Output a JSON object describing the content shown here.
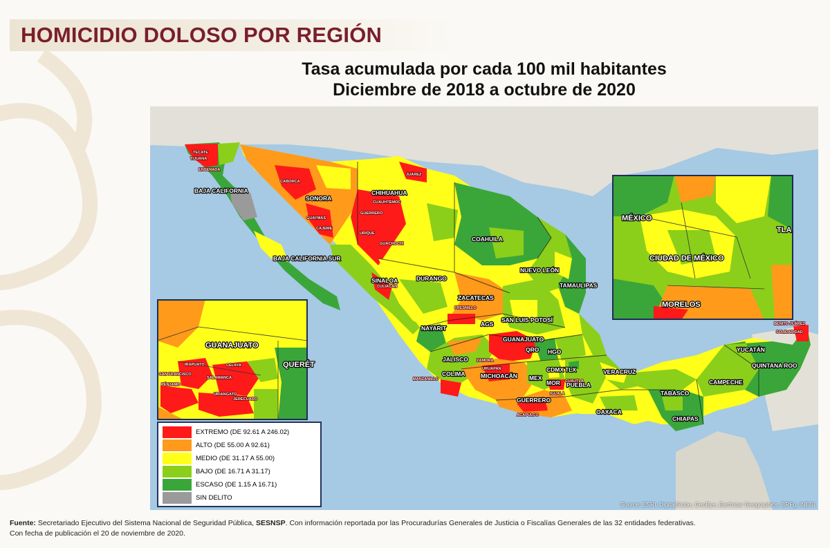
{
  "header": {
    "title": "HOMICIDIO DOLOSO POR REGIÓN",
    "subtitle_line1": "Tasa acumulada por cada 100 mil habitantes",
    "subtitle_line2": "Diciembre de 2018 a octubre de 2020"
  },
  "colors": {
    "extremo": "#ff1a1a",
    "alto": "#ff9a1a",
    "medio": "#ffff1a",
    "bajo": "#8ccf1a",
    "escaso": "#3aa63a",
    "sin_delito": "#9a9a9a",
    "title": "#7a1e2c"
  },
  "legend": [
    {
      "label": "EXTREMO (DE 92.61 A 246.02)",
      "color": "#ff1a1a"
    },
    {
      "label": "ALTO (DE 55.00 A 92.61)",
      "color": "#ff9a1a"
    },
    {
      "label": "MEDIO (DE 31.17 A 55.00)",
      "color": "#ffff1a"
    },
    {
      "label": "BAJO (DE 16.71 A 31.17)",
      "color": "#8ccf1a"
    },
    {
      "label": "ESCASO (DE 1.15 A 16.71)",
      "color": "#3aa63a"
    },
    {
      "label": "SIN DELITO",
      "color": "#9a9a9a"
    }
  ],
  "map": {
    "states": {
      "sonora": "SONORA",
      "chihuahua": "CHIHUAHUA",
      "coahuila": "COAHUILA",
      "baja_california": "BAJA CALIFORNIA",
      "baja_california_sur": "BAJA CALIFORNIA SUR",
      "sinaloa": "SINALOA",
      "durango": "DURANGO",
      "nuevo_leon": "NUEVO LEÓN",
      "tamaulipas": "TAMAULIPAS",
      "zacatecas": "ZACATECAS",
      "nayarit": "NAYARIT",
      "ags": "AGS",
      "san_luis_potosi": "SAN LUIS POTOSÍ",
      "guanajuato": "GUANAJUATO",
      "jalisco": "JALISCO",
      "colima": "COLIMA",
      "michoacan": "MICHOACÁN",
      "qro": "QRO",
      "hgo": "HGO",
      "mex": "MEX",
      "cdmx": "CDMX",
      "tlx": "TLX",
      "mor": "MOR",
      "puebla": "PUEBLA",
      "veracruz": "VERACRUZ",
      "guerrero": "GUERRERO",
      "oaxaca": "OAXACA",
      "tabasco": "TABASCO",
      "chiapas": "CHIAPAS",
      "campeche": "CAMPECHE",
      "yucatan": "YUCATÁN",
      "quintana_roo": "QUINTANA ROO"
    },
    "cities": {
      "tecate": "TECATE",
      "tijuana": "TIJUANA",
      "ensenada": "ENSENADA",
      "caborca": "CABORCA",
      "juarez": "JUÁREZ",
      "cuauhtemoc": "CUAUHTÉMOC",
      "guerrero_mun": "GUERRERO",
      "guaymas": "GUAYMAS",
      "cajeme": "CAJEME",
      "urique": "URIQUE",
      "guachochi": "GUACHOCHI",
      "culiacan": "CULIACÁN",
      "fresnillo": "FRESNILLO",
      "zamora": "ZAMORA",
      "uruapan": "URUAPAN",
      "manzanillo": "MANZANILLO",
      "acapulco": "ACAPULCO",
      "benito_juarez": "BENITO JUÁREZ",
      "solidaridad": "SOLIDARIDAD",
      "cuautla": "CUAUTLA",
      "iguala": "IGUALA"
    },
    "source": "Source: ESRI, DigitalGlobe, GeoEye, Earthstar Geographics, BRFg, INEGI",
    "inset_cdmx": {
      "mexico": "MÉXICO",
      "cdmx": "CIUDAD DE MÉXICO",
      "morelos": "MORELOS",
      "tla": "TLA"
    },
    "inset_gto": {
      "guanajuato": "GUANAJUATO",
      "queretaro": "QUERÉT",
      "irapuato": "IRAPUATO",
      "celaya": "CELAYA",
      "salamanca": "SALAMANCA",
      "san_francisco": "SAN FRANCISCO",
      "penjamo": "PÉNJAMO",
      "uriangato": "URIANGATO",
      "jerecuaro": "JERÉCUARO"
    }
  },
  "footer": {
    "source_label": "Fuente:",
    "source_text_a": " Secretariado Ejecutivo del Sistema Nacional de Seguridad Pública, ",
    "source_org": "SESNSP",
    "source_text_b": ". Con información reportada por las Procuradurías Generales de Justicia o Fiscalías Generales de las 32 entidades federativas.",
    "publication": "Con fecha de publicación el 20 de noviembre de 2020."
  }
}
